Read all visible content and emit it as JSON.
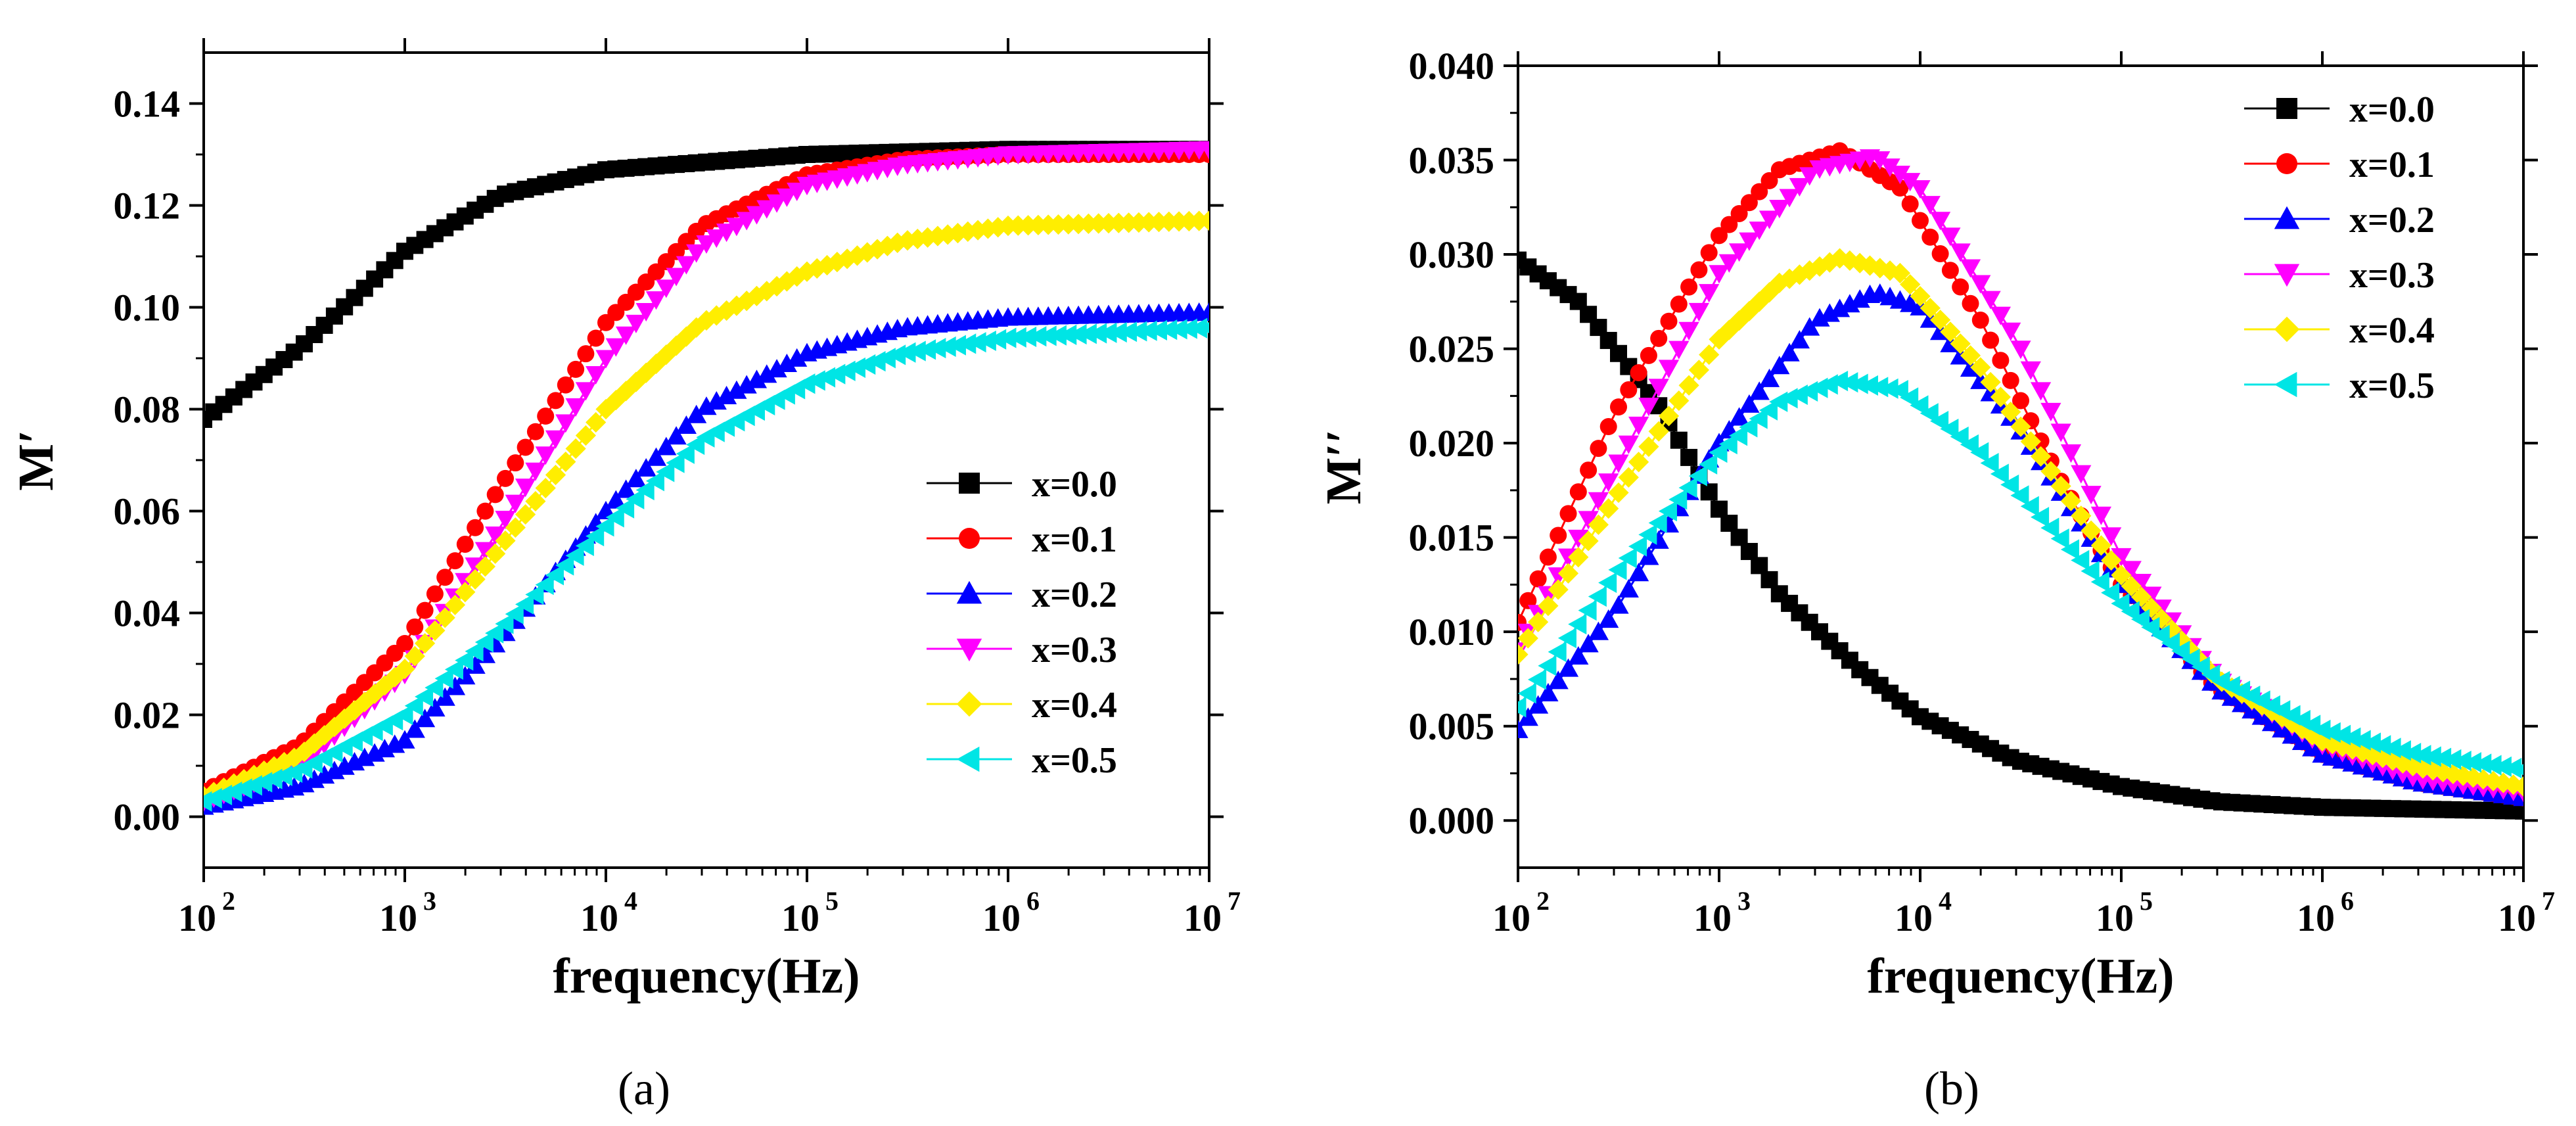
{
  "figure": {
    "caption_a": "(a)",
    "caption_b": "(b)"
  },
  "chart_data": [
    {
      "type": "scatter",
      "title": "",
      "xlabel": "frequency(Hz)",
      "ylabel": "M′",
      "xscale": "log",
      "xlim": [
        100,
        10000000
      ],
      "ylim": [
        -0.01,
        0.15
      ],
      "xticks": [
        100,
        1000,
        10000,
        100000,
        1000000,
        10000000
      ],
      "xtick_labels": [
        "10",
        "10",
        "10",
        "10",
        "10",
        "10"
      ],
      "xtick_exponents": [
        "2",
        "3",
        "4",
        "5",
        "6",
        "7"
      ],
      "yticks": [
        0.0,
        0.02,
        0.04,
        0.06,
        0.08,
        0.1,
        0.12,
        0.14
      ],
      "ytick_labels": [
        "0.00",
        "0.02",
        "0.04",
        "0.06",
        "0.08",
        "0.10",
        "0.12",
        "0.14"
      ],
      "legend_position": "lower-right",
      "series": [
        {
          "name": "x=0.0",
          "color": "#000000",
          "marker": "square",
          "x": [
            100,
            300,
            1000,
            3000,
            10000,
            100000,
            1000000,
            10000000
          ],
          "y": [
            0.078,
            0.092,
            0.111,
            0.122,
            0.127,
            0.13,
            0.131,
            0.131
          ]
        },
        {
          "name": "x=0.1",
          "color": "#ff0000",
          "marker": "circle",
          "x": [
            100,
            300,
            1000,
            3000,
            10000,
            30000,
            100000,
            300000,
            1000000,
            10000000
          ],
          "y": [
            0.005,
            0.014,
            0.034,
            0.065,
            0.097,
            0.116,
            0.126,
            0.129,
            0.13,
            0.13
          ]
        },
        {
          "name": "x=0.2",
          "color": "#0000ff",
          "marker": "triangle-up",
          "x": [
            100,
            300,
            1000,
            3000,
            10000,
            30000,
            100000,
            300000,
            1000000,
            10000000
          ],
          "y": [
            0.002,
            0.006,
            0.015,
            0.035,
            0.06,
            0.08,
            0.091,
            0.096,
            0.098,
            0.099
          ]
        },
        {
          "name": "x=0.3",
          "color": "#ff00ff",
          "marker": "triangle-down",
          "x": [
            100,
            300,
            1000,
            3000,
            10000,
            30000,
            100000,
            300000,
            1000000,
            10000000
          ],
          "y": [
            0.003,
            0.01,
            0.028,
            0.057,
            0.09,
            0.112,
            0.124,
            0.128,
            0.13,
            0.131
          ]
        },
        {
          "name": "x=0.4",
          "color": "#ffee00",
          "marker": "diamond",
          "x": [
            100,
            300,
            1000,
            3000,
            10000,
            30000,
            100000,
            300000,
            1000000,
            10000000
          ],
          "y": [
            0.004,
            0.012,
            0.029,
            0.053,
            0.08,
            0.097,
            0.107,
            0.113,
            0.116,
            0.117
          ]
        },
        {
          "name": "x=0.5",
          "color": "#00e5e5",
          "marker": "triangle-left",
          "x": [
            100,
            300,
            1000,
            3000,
            10000,
            30000,
            100000,
            300000,
            1000000,
            10000000
          ],
          "y": [
            0.003,
            0.009,
            0.02,
            0.037,
            0.057,
            0.074,
            0.085,
            0.091,
            0.094,
            0.096
          ]
        }
      ]
    },
    {
      "type": "scatter",
      "title": "",
      "xlabel": "frequency(Hz)",
      "ylabel": "M′′",
      "xscale": "log",
      "xlim": [
        100,
        10000000
      ],
      "ylim": [
        -0.0025,
        0.04
      ],
      "xticks": [
        100,
        1000,
        10000,
        100000,
        1000000,
        10000000
      ],
      "xtick_labels": [
        "10",
        "10",
        "10",
        "10",
        "10",
        "10"
      ],
      "xtick_exponents": [
        "2",
        "3",
        "4",
        "5",
        "6",
        "7"
      ],
      "yticks": [
        0.0,
        0.005,
        0.01,
        0.015,
        0.02,
        0.025,
        0.03,
        0.035,
        0.04
      ],
      "ytick_labels": [
        "0.000",
        "0.005",
        "0.010",
        "0.015",
        "0.020",
        "0.025",
        "0.030",
        "0.035",
        "0.040"
      ],
      "legend_position": "top-right",
      "series": [
        {
          "name": "x=0.0",
          "color": "#000000",
          "marker": "square",
          "x": [
            100,
            200,
            500,
            1000,
            2000,
            5000,
            10000,
            30000,
            100000,
            300000,
            1000000,
            10000000
          ],
          "y": [
            0.0297,
            0.0275,
            0.022,
            0.0165,
            0.012,
            0.008,
            0.0055,
            0.0032,
            0.0018,
            0.001,
            0.0007,
            0.0005
          ]
        },
        {
          "name": "x=0.1",
          "color": "#ff0000",
          "marker": "circle",
          "x": [
            100,
            300,
            1000,
            2000,
            4000,
            8000,
            20000,
            50000,
            100000,
            300000,
            1000000,
            3000000,
            10000000
          ],
          "y": [
            0.0105,
            0.0215,
            0.031,
            0.0345,
            0.0355,
            0.0335,
            0.0265,
            0.018,
            0.0125,
            0.007,
            0.0035,
            0.002,
            0.0012
          ]
        },
        {
          "name": "x=0.2",
          "color": "#0000ff",
          "marker": "triangle-up",
          "x": [
            100,
            300,
            1000,
            3000,
            6000,
            10000,
            30000,
            100000,
            300000,
            1000000,
            3000000,
            10000000
          ],
          "y": [
            0.0048,
            0.011,
            0.02,
            0.0265,
            0.028,
            0.0272,
            0.021,
            0.0125,
            0.007,
            0.0035,
            0.002,
            0.0012
          ]
        },
        {
          "name": "x=0.3",
          "color": "#ff00ff",
          "marker": "triangle-down",
          "x": [
            100,
            300,
            1000,
            3000,
            6000,
            10000,
            30000,
            100000,
            300000,
            1000000,
            3000000,
            10000000
          ],
          "y": [
            0.009,
            0.0185,
            0.029,
            0.0345,
            0.0352,
            0.0335,
            0.0255,
            0.014,
            0.0075,
            0.004,
            0.0022,
            0.0015
          ]
        },
        {
          "name": "x=0.4",
          "color": "#ffee00",
          "marker": "diamond",
          "x": [
            100,
            300,
            1000,
            2000,
            4000,
            8000,
            20000,
            100000,
            300000,
            1000000,
            3000000,
            10000000
          ],
          "y": [
            0.0088,
            0.017,
            0.0255,
            0.0285,
            0.0298,
            0.029,
            0.024,
            0.013,
            0.0075,
            0.0042,
            0.0028,
            0.0018
          ]
        },
        {
          "name": "x=0.5",
          "color": "#00e5e5",
          "marker": "triangle-left",
          "x": [
            100,
            300,
            1000,
            2000,
            4000,
            8000,
            20000,
            100000,
            300000,
            1000000,
            3000000,
            10000000
          ],
          "y": [
            0.006,
            0.013,
            0.0195,
            0.0222,
            0.0233,
            0.0228,
            0.0195,
            0.0115,
            0.0075,
            0.0048,
            0.0035,
            0.0027
          ]
        }
      ]
    }
  ]
}
